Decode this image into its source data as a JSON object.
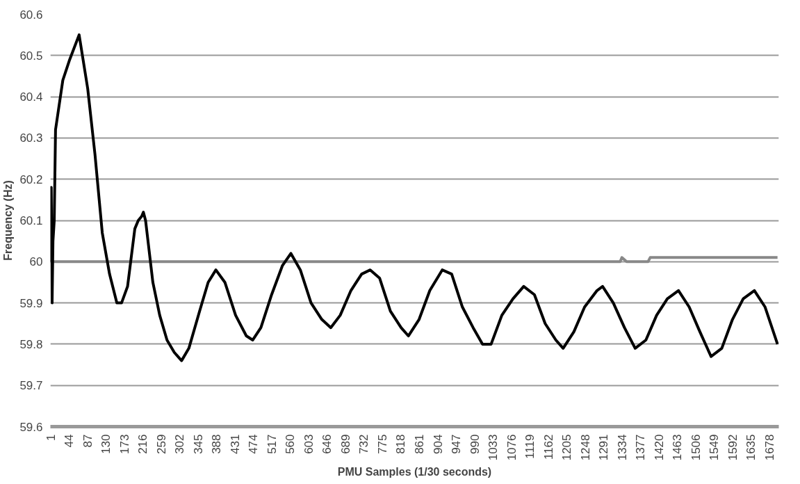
{
  "chart_data": {
    "type": "line",
    "xlabel": "PMU Samples (1/30 seconds)",
    "ylabel": "Frequency (Hz)",
    "xlim": [
      1,
      1700
    ],
    "xticks": [
      1,
      44,
      87,
      130,
      173,
      216,
      259,
      302,
      345,
      388,
      431,
      474,
      517,
      560,
      603,
      646,
      689,
      732,
      775,
      818,
      861,
      904,
      947,
      990,
      1033,
      1076,
      1119,
      1162,
      1205,
      1248,
      1291,
      1334,
      1377,
      1420,
      1463,
      1506,
      1549,
      1592,
      1635,
      1678
    ],
    "ylim": [
      59.6,
      60.6
    ],
    "yticks": [
      {
        "value": 59.6,
        "label": "59.6"
      },
      {
        "value": 59.7,
        "label": "59.7"
      },
      {
        "value": 59.8,
        "label": "59.8"
      },
      {
        "value": 59.9,
        "label": "59.9"
      },
      {
        "value": 60,
        "label": "60"
      },
      {
        "value": 60.1,
        "label": "60.1"
      },
      {
        "value": 60.2,
        "label": "60.2"
      },
      {
        "value": 60.3,
        "label": "60.3"
      },
      {
        "value": 60.4,
        "label": "60.4"
      },
      {
        "value": 60.5,
        "label": "60.5"
      },
      {
        "value": 60.6,
        "label": "60.6"
      }
    ],
    "grid": "y",
    "marker": "none",
    "line_style": "solid",
    "series": [
      {
        "color": "#888888",
        "x": [
          1,
          1330,
          1334,
          1345,
          1395,
          1400,
          1697
        ],
        "values": [
          60.0,
          60.0,
          60.01,
          60.0,
          60.0,
          60.01,
          60.01
        ]
      },
      {
        "color": "#000000",
        "x": [
          1,
          3,
          5,
          7,
          10,
          13,
          30,
          46,
          68,
          88,
          105,
          122,
          139,
          156,
          167,
          181,
          198,
          206,
          214,
          218,
          223,
          240,
          256,
          273,
          290,
          307,
          324,
          349,
          369,
          387,
          408,
          433,
          458,
          473,
          492,
          517,
          542,
          562,
          584,
          609,
          634,
          655,
          677,
          702,
          727,
          747,
          769,
          794,
          819,
          836,
          861,
          886,
          915,
          937,
          962,
          987,
          1009,
          1029,
          1054,
          1080,
          1105,
          1130,
          1155,
          1180,
          1197,
          1222,
          1247,
          1276,
          1289,
          1314,
          1340,
          1365,
          1390,
          1415,
          1440,
          1466,
          1491,
          1516,
          1542,
          1567,
          1592,
          1617,
          1643,
          1668,
          1697
        ],
        "values": [
          60.0,
          60.18,
          59.9,
          60.05,
          60.1,
          60.32,
          60.44,
          60.49,
          60.55,
          60.42,
          60.26,
          60.07,
          59.97,
          59.9,
          59.9,
          59.94,
          60.08,
          60.1,
          60.11,
          60.12,
          60.1,
          59.95,
          59.87,
          59.81,
          59.78,
          59.76,
          59.79,
          59.88,
          59.95,
          59.98,
          59.95,
          59.87,
          59.82,
          59.81,
          59.84,
          59.92,
          59.99,
          60.02,
          59.98,
          59.9,
          59.86,
          59.84,
          59.87,
          59.93,
          59.97,
          59.98,
          59.96,
          59.88,
          59.84,
          59.82,
          59.86,
          59.93,
          59.98,
          59.97,
          59.89,
          59.84,
          59.8,
          59.8,
          59.87,
          59.91,
          59.94,
          59.92,
          59.85,
          59.81,
          59.79,
          59.83,
          59.89,
          59.93,
          59.94,
          59.9,
          59.84,
          59.79,
          59.81,
          59.87,
          59.91,
          59.93,
          59.89,
          59.83,
          59.77,
          59.79,
          59.86,
          59.91,
          59.93,
          59.89,
          59.8
        ]
      }
    ]
  }
}
